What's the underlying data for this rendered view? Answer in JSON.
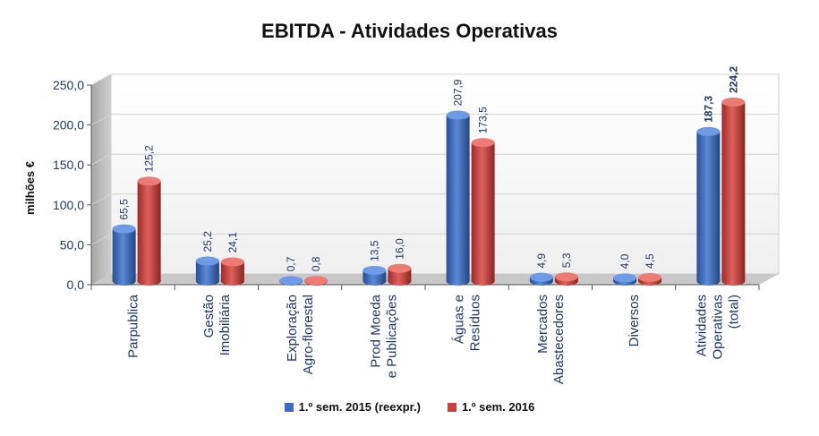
{
  "chart_data": {
    "type": "bar",
    "title": "EBITDA - Atividades Operativas",
    "xlabel": "",
    "ylabel": "milhões €",
    "ylim": [
      0,
      250
    ],
    "yticks": [
      "0,0",
      "50,0",
      "100,0",
      "150,0",
      "200,0",
      "250,0"
    ],
    "categories": [
      [
        "Parpublica"
      ],
      [
        "Gestão",
        "Imobiliária"
      ],
      [
        "Exploração",
        "Agro-florestal"
      ],
      [
        "Prod Moeda",
        "e Publicações"
      ],
      [
        "Águas e",
        "Resíduos"
      ],
      [
        "Mercados",
        "Abastecedores"
      ],
      [
        "Diversos"
      ],
      [
        "Atividades",
        "Operativas",
        "(total)"
      ]
    ],
    "series": [
      {
        "name": "1.º sem. 2015 (reexpr.)",
        "color": "#3d6bbf",
        "values": [
          65.5,
          25.2,
          0.7,
          13.5,
          207.9,
          4.9,
          4.0,
          187.3
        ],
        "labels": [
          "65,5",
          "25,2",
          "0,7",
          "13,5",
          "207,9",
          "4,9",
          "4,0",
          "187,3"
        ]
      },
      {
        "name": "1.º sem. 2016",
        "color": "#c9403e",
        "values": [
          125.2,
          24.1,
          0.8,
          16.0,
          173.5,
          5.3,
          4.5,
          224.2
        ],
        "labels": [
          "125,2",
          "24,1",
          "0,8",
          "16,0",
          "173,5",
          "5,3",
          "4,5",
          "224,2"
        ]
      }
    ],
    "legend_position": "bottom",
    "grid": true
  }
}
